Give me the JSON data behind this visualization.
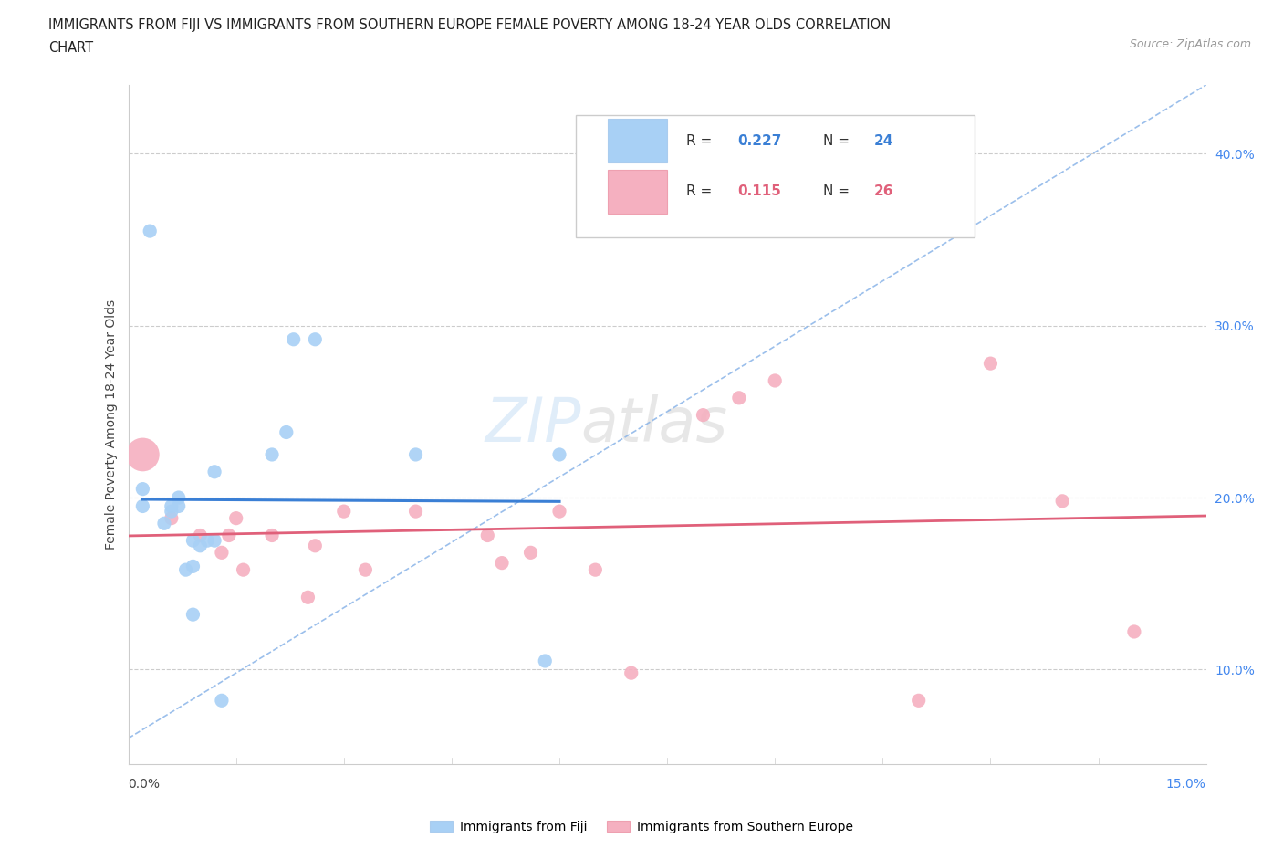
{
  "title_line1": "IMMIGRANTS FROM FIJI VS IMMIGRANTS FROM SOUTHERN EUROPE FEMALE POVERTY AMONG 18-24 YEAR OLDS CORRELATION",
  "title_line2": "CHART",
  "source": "Source: ZipAtlas.com",
  "ylabel": "Female Poverty Among 18-24 Year Olds",
  "y_ticks": [
    0.1,
    0.2,
    0.3,
    0.4
  ],
  "y_tick_labels": [
    "10.0%",
    "20.0%",
    "30.0%",
    "40.0%"
  ],
  "xlim": [
    0.0,
    0.15
  ],
  "ylim": [
    0.045,
    0.44
  ],
  "fiji_color": "#a8d0f5",
  "fiji_line_color": "#3a7fd5",
  "se_color": "#f5b0c0",
  "se_line_color": "#e0607a",
  "trendline_color": "#8ab4e8",
  "legend_r_fiji": "0.227",
  "legend_n_fiji": "24",
  "legend_r_se": "0.115",
  "legend_n_se": "26",
  "fiji_x": [
    0.002,
    0.002,
    0.003,
    0.005,
    0.006,
    0.006,
    0.007,
    0.007,
    0.008,
    0.009,
    0.009,
    0.009,
    0.01,
    0.011,
    0.012,
    0.012,
    0.013,
    0.02,
    0.022,
    0.023,
    0.026,
    0.04,
    0.058,
    0.06
  ],
  "fiji_y": [
    0.195,
    0.205,
    0.355,
    0.185,
    0.192,
    0.195,
    0.195,
    0.2,
    0.158,
    0.132,
    0.16,
    0.175,
    0.172,
    0.175,
    0.175,
    0.215,
    0.082,
    0.225,
    0.238,
    0.292,
    0.292,
    0.225,
    0.105,
    0.225
  ],
  "se_x": [
    0.002,
    0.006,
    0.01,
    0.013,
    0.014,
    0.015,
    0.016,
    0.02,
    0.025,
    0.026,
    0.03,
    0.033,
    0.04,
    0.05,
    0.052,
    0.056,
    0.06,
    0.065,
    0.07,
    0.08,
    0.085,
    0.09,
    0.11,
    0.12,
    0.13,
    0.14
  ],
  "se_y": [
    0.225,
    0.188,
    0.178,
    0.168,
    0.178,
    0.188,
    0.158,
    0.178,
    0.142,
    0.172,
    0.192,
    0.158,
    0.192,
    0.178,
    0.162,
    0.168,
    0.192,
    0.158,
    0.098,
    0.248,
    0.258,
    0.268,
    0.082,
    0.278,
    0.198,
    0.122
  ],
  "se_large_idx": [
    0
  ],
  "watermark_zip": "ZIP",
  "watermark_atlas": "atlas",
  "background": "#ffffff"
}
